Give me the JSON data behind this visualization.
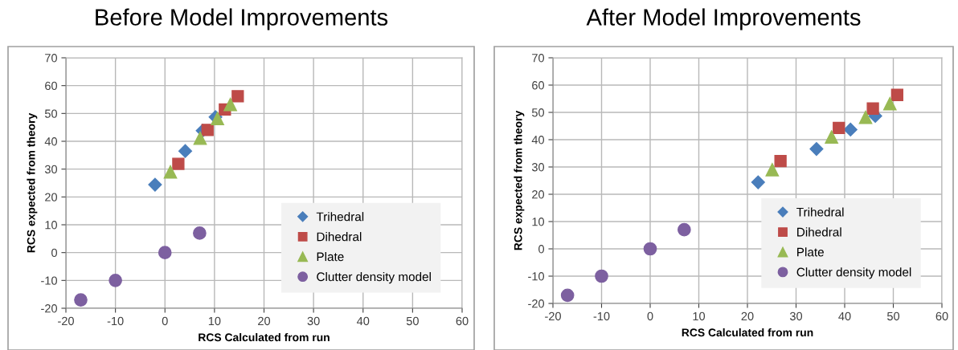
{
  "chart_data": [
    {
      "type": "scatter",
      "title": "Before Model Improvements",
      "xlabel": "RCS Calculated from run",
      "ylabel": "RCS expected from theory",
      "xlim": [
        -20,
        60
      ],
      "xticks": [
        -20,
        -10,
        0,
        10,
        20,
        30,
        40,
        50,
        60
      ],
      "ylim": [
        -20,
        70
      ],
      "yticks": [
        -20,
        -10,
        0,
        10,
        20,
        30,
        40,
        50,
        60,
        70
      ],
      "grid": true,
      "legend": "bottom right",
      "series": [
        {
          "name": "Trihedral",
          "color": "#4a7ebb",
          "marker": "diamond",
          "x": [
            -2,
            4.1,
            7.6,
            10.2
          ],
          "values": [
            24.4,
            36.5,
            43.8,
            48.7
          ]
        },
        {
          "name": "Dihedral",
          "color": "#be4b48",
          "marker": "square",
          "x": [
            2.7,
            8.6,
            12.1,
            14.7
          ],
          "values": [
            31.9,
            44.1,
            51.4,
            56.2
          ]
        },
        {
          "name": "Plate",
          "color": "#98b954",
          "marker": "triangle",
          "x": [
            1.1,
            7.1,
            10.6,
            13.2
          ],
          "values": [
            29,
            41.1,
            48.2,
            53.2
          ]
        },
        {
          "name": "Clutter density model",
          "color": "#7d60a0",
          "marker": "circle",
          "x": [
            -17,
            -10,
            0,
            7
          ],
          "values": [
            -17,
            -10,
            0,
            7
          ]
        }
      ]
    },
    {
      "type": "scatter",
      "title": "After Model Improvements",
      "xlabel": "RCS Calculated from run",
      "ylabel": "RCS expected from theory",
      "xlim": [
        -20,
        60
      ],
      "xticks": [
        -20,
        -10,
        0,
        10,
        20,
        30,
        40,
        50,
        60
      ],
      "ylim": [
        -20,
        70
      ],
      "yticks": [
        -20,
        -10,
        0,
        10,
        20,
        30,
        40,
        50,
        60,
        70
      ],
      "grid": true,
      "legend": "bottom right",
      "series": [
        {
          "name": "Trihedral",
          "color": "#4a7ebb",
          "marker": "diamond",
          "x": [
            22.2,
            34.2,
            41.2,
            46.3
          ],
          "values": [
            24.4,
            36.6,
            43.7,
            48.7
          ]
        },
        {
          "name": "Dihedral",
          "color": "#be4b48",
          "marker": "square",
          "x": [
            26.8,
            38.8,
            45.8,
            50.8
          ],
          "values": [
            32.2,
            44.3,
            51.4,
            56.4
          ]
        },
        {
          "name": "Plate",
          "color": "#98b954",
          "marker": "triangle",
          "x": [
            25.1,
            37.3,
            44.3,
            49.3
          ],
          "values": [
            29,
            41,
            48.2,
            53.2
          ]
        },
        {
          "name": "Clutter density model",
          "color": "#7d60a0",
          "marker": "circle",
          "x": [
            -17,
            -10,
            0,
            7
          ],
          "values": [
            -17,
            -10,
            0,
            7
          ]
        }
      ]
    }
  ]
}
